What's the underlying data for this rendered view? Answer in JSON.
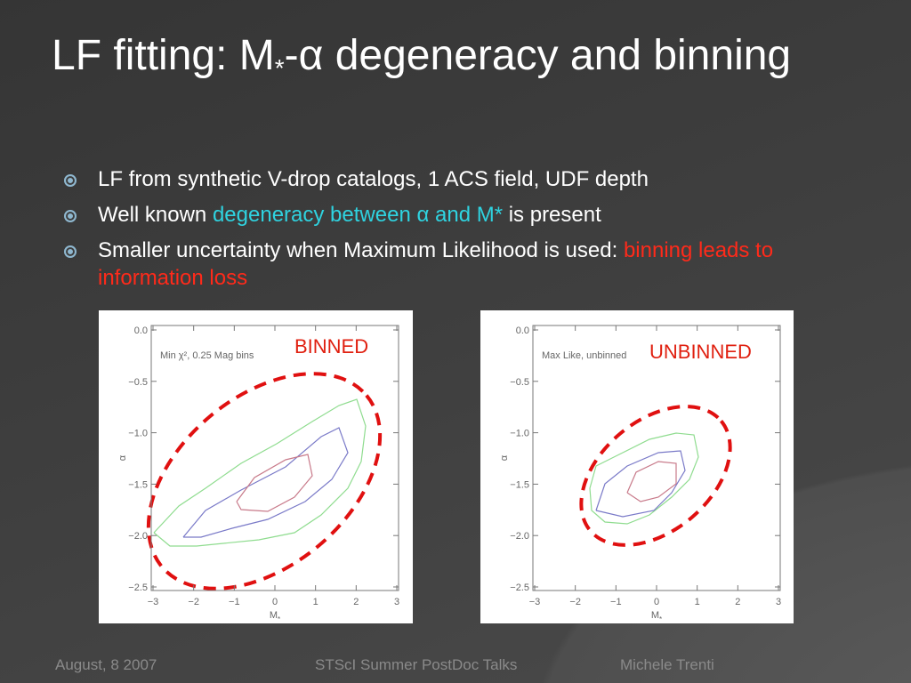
{
  "title": {
    "pre": "LF fitting: M",
    "sub": "*",
    "post": "-α degeneracy and binning"
  },
  "bullets": [
    {
      "parts": [
        "LF from synthetic V-drop catalogs, 1 ACS field, UDF depth"
      ]
    },
    {
      "parts": [
        "Well known ",
        "degeneracy between α and M*",
        " is present"
      ]
    },
    {
      "parts": [
        "Smaller uncertainty when Maximum Likelihood is used: ",
        "binning leads to information loss"
      ]
    }
  ],
  "figures": [
    {
      "annotation": "Min χ², 0.25 Mag bins",
      "label": "BINNED",
      "x_axis_label": {
        "main": "M",
        "sub": "*"
      },
      "y_axis_label": "α",
      "x_tick_labels": [
        "−3",
        "−2",
        "−1",
        "0",
        "1",
        "2",
        "3"
      ],
      "y_tick_labels": [
        "0.0",
        "−0.5",
        "−1.0",
        "−1.5",
        "−2.0",
        "−2.5"
      ]
    },
    {
      "annotation": "Max Like, unbinned",
      "label": "UNBINNED",
      "x_axis_label": {
        "main": "M",
        "sub": "*"
      },
      "y_axis_label": "α",
      "x_tick_labels": [
        "−3",
        "−2",
        "−1",
        "0",
        "1",
        "2",
        "3"
      ],
      "y_tick_labels": [
        "0.0",
        "−0.5",
        "−1.0",
        "−1.5",
        "−2.0",
        "−2.5"
      ]
    }
  ],
  "footer": {
    "date": "August, 8 2007",
    "event": "STScI Summer PostDoc Talks",
    "author": "Michele Trenti"
  }
}
